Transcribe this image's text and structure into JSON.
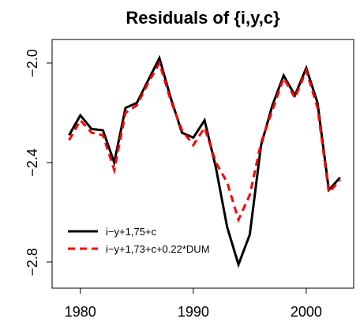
{
  "chart_data": {
    "type": "line",
    "title": "Residuals of {i,y,c}",
    "x": [
      1979,
      1980,
      1981,
      1982,
      1983,
      1984,
      1985,
      1986,
      1987,
      1988,
      1989,
      1990,
      1991,
      1992,
      1993,
      1994,
      1995,
      1996,
      1997,
      1998,
      1999,
      2000,
      2001,
      2002,
      2003
    ],
    "series": [
      {
        "name": "i−y+1,75+c",
        "color": "#000000",
        "dash": "solid",
        "values": [
          -2.29,
          -2.21,
          -2.265,
          -2.27,
          -2.4,
          -2.18,
          -2.16,
          -2.07,
          -1.98,
          -2.14,
          -2.28,
          -2.3,
          -2.23,
          -2.42,
          -2.66,
          -2.81,
          -2.69,
          -2.33,
          -2.17,
          -2.05,
          -2.13,
          -2.02,
          -2.16,
          -2.51,
          -2.46
        ]
      },
      {
        "name": "i−y+1,73+c+0.22*DUM",
        "color": "#ff0000",
        "dash": "dashed",
        "values": [
          -2.31,
          -2.23,
          -2.28,
          -2.29,
          -2.43,
          -2.2,
          -2.17,
          -2.08,
          -2.0,
          -2.15,
          -2.27,
          -2.33,
          -2.26,
          -2.4,
          -2.48,
          -2.63,
          -2.53,
          -2.32,
          -2.19,
          -2.06,
          -2.14,
          -2.03,
          -2.18,
          -2.52,
          -2.47
        ]
      }
    ],
    "xlim": [
      1977.5,
      2004.2
    ],
    "xticks": [
      1980,
      1990,
      2000
    ],
    "ylim": [
      -2.905,
      -1.905
    ],
    "yticks": [
      {
        "value": -2.0,
        "label": "−2.0"
      },
      {
        "value": -2.4,
        "label": "−2.4"
      },
      {
        "value": -2.8,
        "label": "−2.8"
      }
    ],
    "legend": "bottom-left"
  }
}
